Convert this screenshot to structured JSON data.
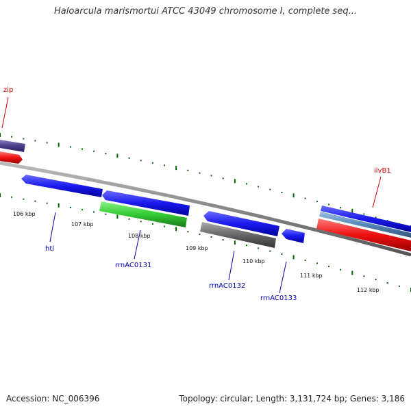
{
  "title": "Haloarcula marismortui ATCC 43049 chromosome I, complete seq...",
  "footer": {
    "accession": "Accession: NC_006396",
    "stats": "Topology: circular; Length: 3,131,724 bp; Genes: 3,186"
  },
  "ticks": [
    {
      "label": "106 kbp"
    },
    {
      "label": "107 kbp"
    },
    {
      "label": "108 kbp"
    },
    {
      "label": "109 kbp"
    },
    {
      "label": "110 kbp"
    },
    {
      "label": "111 kbp"
    },
    {
      "label": "112 kbp"
    }
  ],
  "genes": [
    {
      "name": "zip",
      "color": "#cc0000"
    },
    {
      "name": "ilvB1",
      "color": "#cc0000"
    },
    {
      "name": "htl",
      "color": "#0000aa"
    },
    {
      "name": "rrnAC0131",
      "color": "#0000aa"
    },
    {
      "name": "rrnAC0132",
      "color": "#0000aa"
    },
    {
      "name": "rrnAC0133",
      "color": "#0000aa"
    }
  ],
  "colors": {
    "backbone": "#888888",
    "tick": "#006600",
    "feature_blue": "#1010ee",
    "feature_red": "#ee1111",
    "feature_green": "#33cc33",
    "feature_gray": "#666666",
    "feature_purple": "#4a3d8a",
    "feature_steel": "#5588bb"
  }
}
